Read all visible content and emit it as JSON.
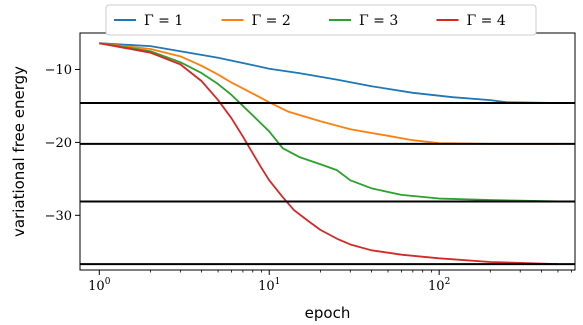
{
  "chart_data": {
    "type": "line",
    "xlabel": "epoch",
    "ylabel": "variational free energy",
    "xscale": "log",
    "xlim": [
      0.77,
      630
    ],
    "ylim": [
      -37.5,
      -5.0
    ],
    "xticks": [
      {
        "value": 1,
        "base": "10",
        "exp": "0"
      },
      {
        "value": 10,
        "base": "10",
        "exp": "1"
      },
      {
        "value": 100,
        "base": "10",
        "exp": "2"
      }
    ],
    "yticks": [
      {
        "value": -10,
        "label": "−10"
      },
      {
        "value": -20,
        "label": "−20"
      },
      {
        "value": -30,
        "label": "−30"
      }
    ],
    "grid": false,
    "legend_position": "top-center",
    "reference_lines": [
      -14.6,
      -20.2,
      -28.1,
      -36.7
    ],
    "reference_color": "#000000",
    "series": [
      {
        "name": "Γ = 1",
        "legend_symbol": "Γ",
        "legend_value": "1",
        "color": "#1f77b4",
        "points": [
          [
            1,
            -6.4
          ],
          [
            2,
            -6.8
          ],
          [
            3,
            -7.5
          ],
          [
            5,
            -8.4
          ],
          [
            8,
            -9.4
          ],
          [
            10,
            -9.9
          ],
          [
            15,
            -10.5
          ],
          [
            25,
            -11.4
          ],
          [
            40,
            -12.3
          ],
          [
            70,
            -13.2
          ],
          [
            120,
            -13.8
          ],
          [
            200,
            -14.2
          ],
          [
            250,
            -14.5
          ],
          [
            500,
            -14.6
          ]
        ]
      },
      {
        "name": "Γ = 2",
        "legend_symbol": "Γ",
        "legend_value": "2",
        "color": "#ff7f0e",
        "points": [
          [
            1,
            -6.4
          ],
          [
            2,
            -7.2
          ],
          [
            3,
            -8.2
          ],
          [
            4,
            -9.5
          ],
          [
            5,
            -10.7
          ],
          [
            6,
            -11.8
          ],
          [
            8,
            -13.3
          ],
          [
            10,
            -14.5
          ],
          [
            13,
            -15.8
          ],
          [
            20,
            -17.1
          ],
          [
            30,
            -18.2
          ],
          [
            50,
            -19.1
          ],
          [
            70,
            -19.7
          ],
          [
            100,
            -20.1
          ],
          [
            200,
            -20.2
          ],
          [
            500,
            -20.2
          ]
        ]
      },
      {
        "name": "Γ = 3",
        "legend_symbol": "Γ",
        "legend_value": "3",
        "color": "#2ca02c",
        "points": [
          [
            1,
            -6.4
          ],
          [
            2,
            -7.5
          ],
          [
            3,
            -9.0
          ],
          [
            4,
            -10.5
          ],
          [
            5,
            -12.0
          ],
          [
            6,
            -13.5
          ],
          [
            7,
            -15.0
          ],
          [
            8,
            -16.3
          ],
          [
            10,
            -18.5
          ],
          [
            12,
            -20.8
          ],
          [
            15,
            -22.0
          ],
          [
            20,
            -23.0
          ],
          [
            25,
            -23.8
          ],
          [
            30,
            -25.2
          ],
          [
            40,
            -26.3
          ],
          [
            60,
            -27.2
          ],
          [
            100,
            -27.7
          ],
          [
            200,
            -27.9
          ],
          [
            500,
            -28.1
          ]
        ]
      },
      {
        "name": "Γ = 4",
        "legend_symbol": "Γ",
        "legend_value": "4",
        "color": "#d62728",
        "points": [
          [
            1,
            -6.4
          ],
          [
            2,
            -7.7
          ],
          [
            3,
            -9.3
          ],
          [
            4,
            -11.6
          ],
          [
            5,
            -14.2
          ],
          [
            6,
            -16.7
          ],
          [
            7,
            -19.2
          ],
          [
            8,
            -21.5
          ],
          [
            9,
            -23.5
          ],
          [
            10,
            -25.2
          ],
          [
            12,
            -27.5
          ],
          [
            14,
            -29.3
          ],
          [
            17,
            -30.8
          ],
          [
            20,
            -32.0
          ],
          [
            25,
            -33.2
          ],
          [
            30,
            -34.0
          ],
          [
            40,
            -34.8
          ],
          [
            60,
            -35.4
          ],
          [
            100,
            -35.9
          ],
          [
            200,
            -36.4
          ],
          [
            500,
            -36.7
          ]
        ]
      }
    ]
  }
}
